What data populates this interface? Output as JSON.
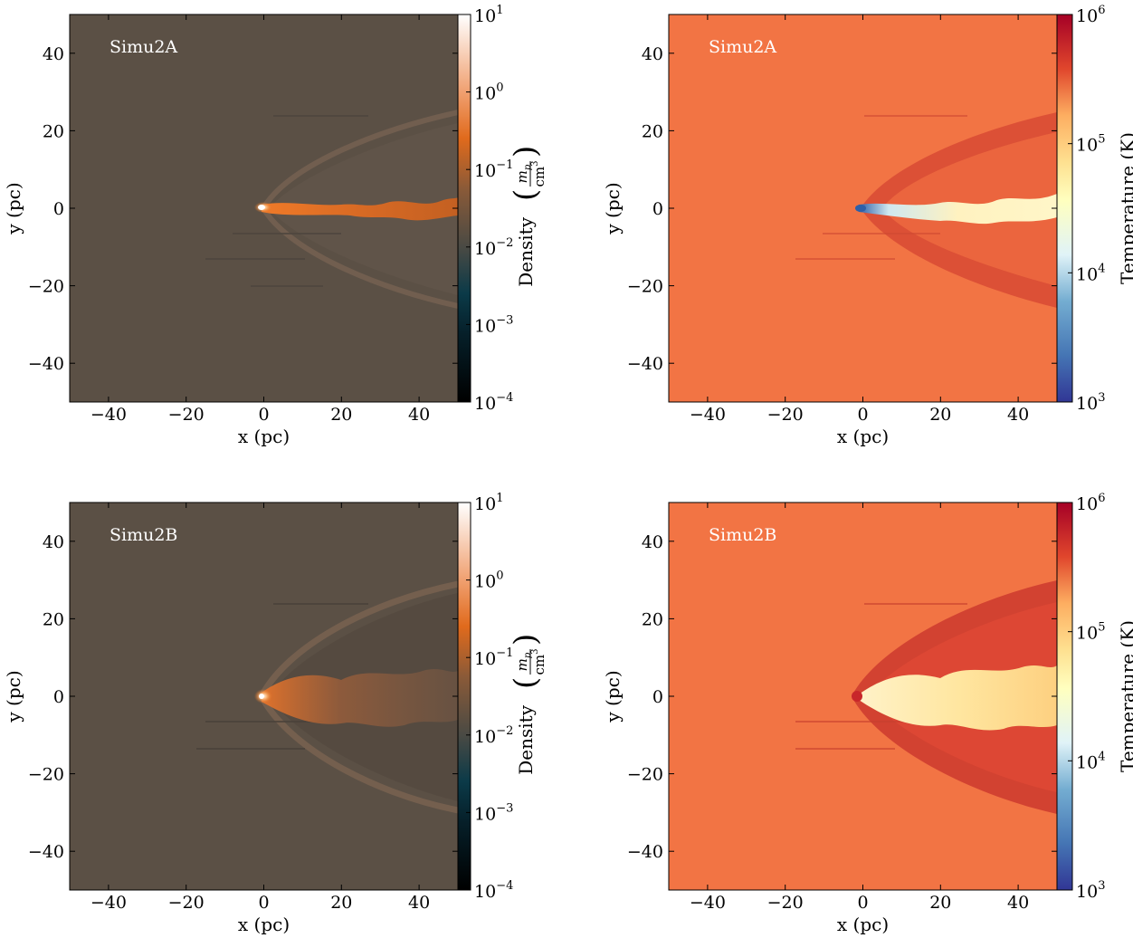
{
  "chart_data": [
    {
      "type": "heatmap",
      "simulation_label": "Simu2A",
      "quantity": "density",
      "x_label": "x  (pc)",
      "y_label": "y  (pc)",
      "xlim": [
        -50,
        50
      ],
      "ylim": [
        -50,
        50
      ],
      "x_ticks": [
        -40,
        -20,
        0,
        20,
        40
      ],
      "y_ticks": [
        -40,
        -20,
        0,
        20,
        40
      ],
      "x_tick_labels": [
        "−40",
        "−20",
        "0",
        "20",
        "40"
      ],
      "y_tick_labels": [
        "−40",
        "−20",
        "0",
        "20",
        "40"
      ],
      "colorbar": {
        "label": "Density",
        "unit_numerator": "m",
        "unit_numerator_sub": "p",
        "unit_denominator": "cm",
        "unit_denominator_sup": "3",
        "scale": "log",
        "range": [
          0.0001,
          10
        ],
        "tick_base": "10",
        "tick_exponents": [
          "-4",
          "-3",
          "-2",
          "-1",
          "0",
          "1"
        ],
        "colors": [
          "#000000",
          "#0a3a4a",
          "#5a5146",
          "#e06a1c",
          "#ffffff"
        ]
      },
      "background_value": 0.01
    },
    {
      "type": "heatmap",
      "simulation_label": "Simu2A",
      "quantity": "temperature",
      "x_label": "x  (pc)",
      "y_label": "y  (pc)",
      "xlim": [
        -50,
        50
      ],
      "ylim": [
        -50,
        50
      ],
      "x_ticks": [
        -40,
        -20,
        0,
        20,
        40
      ],
      "y_ticks": [
        -40,
        -20,
        0,
        20,
        40
      ],
      "x_tick_labels": [
        "−40",
        "−20",
        "0",
        "20",
        "40"
      ],
      "y_tick_labels": [
        "−40",
        "−20",
        "0",
        "20",
        "40"
      ],
      "colorbar": {
        "label": "Temperature  (K)",
        "scale": "log",
        "range": [
          1000,
          1000000
        ],
        "tick_base": "10",
        "tick_exponents": [
          "3",
          "4",
          "5",
          "6"
        ],
        "colors": [
          "#313695",
          "#4575b4",
          "#abd9e9",
          "#ffffbf",
          "#fdae61",
          "#d73027",
          "#a50026"
        ]
      }
    },
    {
      "type": "heatmap",
      "simulation_label": "Simu2B",
      "quantity": "density",
      "x_label": "x  (pc)",
      "y_label": "y  (pc)",
      "xlim": [
        -50,
        50
      ],
      "ylim": [
        -50,
        50
      ],
      "x_ticks": [
        -40,
        -20,
        0,
        20,
        40
      ],
      "y_ticks": [
        -40,
        -20,
        0,
        20,
        40
      ],
      "x_tick_labels": [
        "−40",
        "−20",
        "0",
        "20",
        "40"
      ],
      "y_tick_labels": [
        "−40",
        "−20",
        "0",
        "20",
        "40"
      ],
      "colorbar": {
        "label": "Density",
        "unit_numerator": "m",
        "unit_numerator_sub": "p",
        "unit_denominator": "cm",
        "unit_denominator_sup": "3",
        "scale": "log",
        "range": [
          0.0001,
          10
        ],
        "tick_base": "10",
        "tick_exponents": [
          "-4",
          "-3",
          "-2",
          "-1",
          "0",
          "1"
        ],
        "colors": [
          "#000000",
          "#0a3a4a",
          "#5a5146",
          "#e06a1c",
          "#ffffff"
        ]
      },
      "background_value": 0.01
    },
    {
      "type": "heatmap",
      "simulation_label": "Simu2B",
      "quantity": "temperature",
      "x_label": "x  (pc)",
      "y_label": "y  (pc)",
      "xlim": [
        -50,
        50
      ],
      "ylim": [
        -50,
        50
      ],
      "x_ticks": [
        -40,
        -20,
        0,
        20,
        40
      ],
      "y_ticks": [
        -40,
        -20,
        0,
        20,
        40
      ],
      "x_tick_labels": [
        "−40",
        "−20",
        "0",
        "20",
        "40"
      ],
      "y_tick_labels": [
        "−40",
        "−20",
        "0",
        "20",
        "40"
      ],
      "colorbar": {
        "label": "Temperature  (K)",
        "scale": "log",
        "range": [
          1000,
          1000000
        ],
        "tick_base": "10",
        "tick_exponents": [
          "3",
          "4",
          "5",
          "6"
        ],
        "colors": [
          "#313695",
          "#4575b4",
          "#abd9e9",
          "#ffffbf",
          "#fdae61",
          "#d73027",
          "#a50026"
        ]
      }
    }
  ],
  "colors": {
    "density_background": "#5b5045",
    "density_jet": "#e07020",
    "density_core": "#fff4e8",
    "temperature_background": "#f27444",
    "temperature_shock": "#c0262a",
    "temperature_hot": "#ffe9a8",
    "temperature_cold": "#3c74b8",
    "label_text": "#ffffff"
  }
}
